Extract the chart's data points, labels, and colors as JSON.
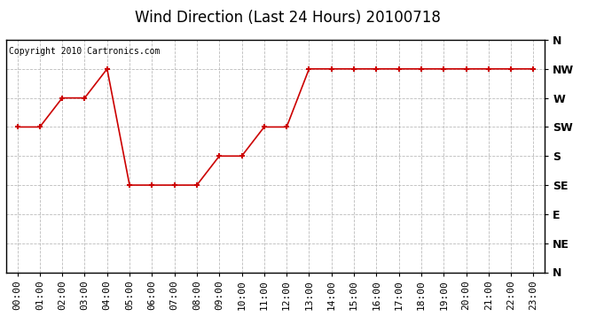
{
  "title": "Wind Direction (Last 24 Hours) 20100718",
  "copyright": "Copyright 2010 Cartronics.com",
  "hours": [
    0,
    1,
    2,
    3,
    4,
    5,
    6,
    7,
    8,
    9,
    10,
    11,
    12,
    13,
    14,
    15,
    16,
    17,
    18,
    19,
    20,
    21,
    22,
    23
  ],
  "values": [
    225,
    225,
    270,
    270,
    315,
    135,
    135,
    135,
    135,
    180,
    180,
    225,
    225,
    315,
    315,
    315,
    315,
    315,
    315,
    315,
    315,
    315,
    315,
    315
  ],
  "line_color": "#cc0000",
  "marker_color": "#cc0000",
  "bg_color": "#ffffff",
  "plot_bg_color": "#ffffff",
  "grid_color": "#bbbbbb",
  "yticks_values": [
    360,
    315,
    270,
    225,
    180,
    135,
    90,
    45,
    0
  ],
  "yticks_labels": [
    "N",
    "NW",
    "W",
    "SW",
    "S",
    "SE",
    "E",
    "NE",
    "N"
  ],
  "ylim_min": 0,
  "ylim_max": 360,
  "title_fontsize": 12,
  "copyright_fontsize": 7,
  "tick_fontsize": 8,
  "ytick_fontsize": 9
}
